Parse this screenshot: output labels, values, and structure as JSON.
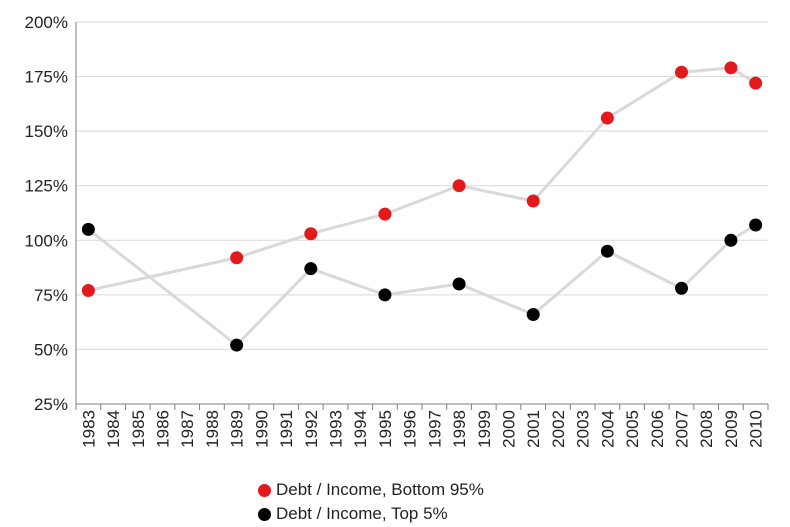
{
  "chart_data": {
    "type": "line",
    "title": "",
    "xlabel": "",
    "ylabel": "",
    "ylim": [
      25,
      200
    ],
    "y_ticks": [
      25,
      50,
      75,
      100,
      125,
      150,
      175,
      200
    ],
    "y_tick_labels": [
      "25%",
      "50%",
      "75%",
      "100%",
      "125%",
      "150%",
      "175%",
      "200%"
    ],
    "categories": [
      "1983",
      "1984",
      "1985",
      "1986",
      "1987",
      "1988",
      "1989",
      "1990",
      "1991",
      "1992",
      "1993",
      "1994",
      "1995",
      "1996",
      "1997",
      "1998",
      "1999",
      "2000",
      "2001",
      "2002",
      "2003",
      "2004",
      "2005",
      "2006",
      "2007",
      "2008",
      "2009",
      "2010"
    ],
    "series": [
      {
        "name": "Debt / Income, Bottom 95%",
        "color": "#e31a1c",
        "line_color": "#d9d9d9",
        "x": [
          "1983",
          "1989",
          "1992",
          "1995",
          "1998",
          "2001",
          "2004",
          "2007",
          "2009",
          "2010"
        ],
        "values": [
          77,
          92,
          103,
          112,
          125,
          118,
          156,
          177,
          179,
          172
        ]
      },
      {
        "name": "Debt / Income, Top 5%",
        "color": "#000000",
        "line_color": "#d9d9d9",
        "x": [
          "1983",
          "1989",
          "1992",
          "1995",
          "1998",
          "2001",
          "2004",
          "2007",
          "2009",
          "2010"
        ],
        "values": [
          105,
          52,
          87,
          75,
          80,
          66,
          95,
          78,
          100,
          107
        ]
      }
    ],
    "legend_position": "bottom",
    "grid": true
  }
}
